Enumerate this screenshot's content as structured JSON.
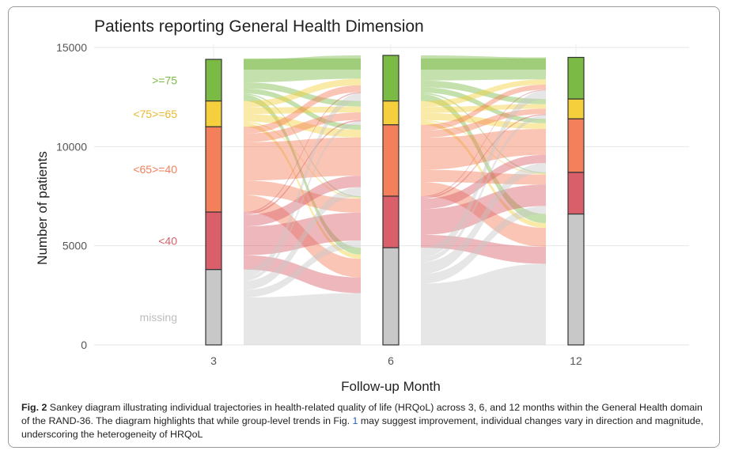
{
  "chart_data": {
    "type": "sankey",
    "title": "Patients reporting General Health Dimension",
    "xlabel": "Follow-up Month",
    "ylabel": "Number of patients",
    "y_ticks": [
      "0",
      "5000",
      "10000",
      "15000"
    ],
    "ylim": [
      0,
      15000
    ],
    "grid": true,
    "x": [
      "3",
      "6",
      "12"
    ],
    "categories": [
      ">=75",
      "<75>=65",
      "<65>=40",
      "<40",
      "missing"
    ],
    "colors": {
      ">=75": "#7cba46",
      "<75>=65": "#f5d03c",
      "<65>=40": "#f47f5b",
      "<40": "#d9606b",
      "missing": "#c8c8c8"
    },
    "series": [
      {
        "name": ">=75",
        "values": [
          2100,
          2300,
          2100
        ]
      },
      {
        "name": "<75>=65",
        "values": [
          1300,
          1200,
          1000
        ]
      },
      {
        "name": "<65>=40",
        "values": [
          4300,
          3600,
          2700
        ]
      },
      {
        "name": "<40",
        "values": [
          2900,
          2600,
          2100
        ]
      },
      {
        "name": "missing",
        "values": [
          3800,
          4900,
          6600
        ]
      }
    ]
  },
  "caption": {
    "label": "Fig. 2",
    "text_before": " Sankey diagram illustrating individual trajectories in health-related quality of life (HRQoL) across 3, 6, and 12 months within the General Health domain of the RAND-36. The diagram highlights that while group-level trends in Fig. ",
    "ref": "1",
    "text_after": " may suggest improvement, individual changes vary in direction and magnitude, underscoring the heterogeneity of HRQoL"
  }
}
